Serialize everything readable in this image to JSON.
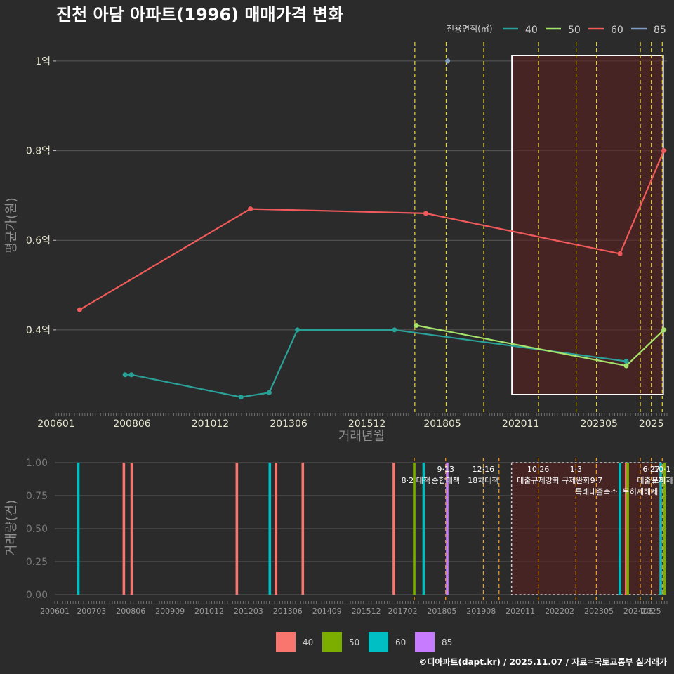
{
  "title": "진천 아담 아파트(1996) 매매가격 변화",
  "caption": "©디아파트(dapt.kr) / 2025.11.07 / 자료=국토교통부 실거래가",
  "colors": {
    "s40": "#f8766d",
    "s50": "#7cae00",
    "s60": "#00bfc4",
    "s85": "#c77cff",
    "bg": "#2b2b2b"
  },
  "legend_top": {
    "title": "전용면적(㎡)",
    "items": [
      {
        "label": "40",
        "color": "#2aa198"
      },
      {
        "label": "50",
        "color": "#a6e36a"
      },
      {
        "label": "60",
        "color": "#f15a5a"
      },
      {
        "label": "85",
        "color": "#7f9cc0"
      }
    ]
  },
  "legend_bottom": {
    "items": [
      {
        "label": "40",
        "color": "#f8766d"
      },
      {
        "label": "50",
        "color": "#7cae00"
      },
      {
        "label": "60",
        "color": "#00bfc4"
      },
      {
        "label": "85",
        "color": "#c77cff"
      }
    ]
  },
  "chart_data": [
    {
      "type": "line",
      "xlabel": "거래년월",
      "ylabel": "평균가(원)",
      "x_range": [
        2006.0,
        2025.5
      ],
      "ylim": [
        0.215,
        1.05
      ],
      "x_ticks": [
        "200601",
        "200806",
        "201012",
        "201306",
        "201512",
        "201805",
        "202011",
        "202305",
        "2025"
      ],
      "y_ticks": [
        "0.4억",
        "0.6억",
        "0.8억",
        "1억"
      ],
      "series": [
        {
          "name": "40",
          "color": "#2aa198",
          "points": [
            [
              2008.2,
              0.3
            ],
            [
              2008.4,
              0.3
            ],
            [
              2011.9,
              0.25
            ],
            [
              2012.8,
              0.26
            ],
            [
              2013.7,
              0.4
            ],
            [
              2016.8,
              0.4
            ],
            [
              2024.2,
              0.33
            ]
          ]
        },
        {
          "name": "50",
          "color": "#a6e36a",
          "points": [
            [
              2017.5,
              0.41
            ],
            [
              2024.2,
              0.32
            ],
            [
              2025.4,
              0.4
            ]
          ]
        },
        {
          "name": "60",
          "color": "#f15a5a",
          "points": [
            [
              2006.75,
              0.445
            ],
            [
              2012.2,
              0.67
            ],
            [
              2017.8,
              0.66
            ],
            [
              2024.0,
              0.57
            ],
            [
              2025.4,
              0.8
            ]
          ]
        },
        {
          "name": "85",
          "color": "#7f9cc0",
          "points": [
            [
              2018.5,
              1.0
            ]
          ]
        }
      ],
      "event_lines": [
        2017.45,
        2018.45,
        2019.65,
        2021.4,
        2022.6,
        2023.25,
        2024.65,
        2025.0,
        2025.35
      ],
      "highlight_range": [
        2020.55,
        2025.38
      ]
    },
    {
      "type": "bar",
      "xlabel": "",
      "ylabel": "거래량(건)",
      "x_range": [
        2006.0,
        2025.5
      ],
      "ylim": [
        0,
        1.0
      ],
      "x_ticks": [
        "200601",
        "200703",
        "200806",
        "200909",
        "201012",
        "201203",
        "201306",
        "201409",
        "201512",
        "201702",
        "201805",
        "201908",
        "202011",
        "202202",
        "202305",
        "202408",
        "2025"
      ],
      "y_ticks": [
        "0.00",
        "0.25",
        "0.50",
        "0.75",
        "1.00"
      ],
      "bars": [
        {
          "x": 2006.75,
          "size": "60",
          "value": 1
        },
        {
          "x": 2008.2,
          "size": "40",
          "value": 1
        },
        {
          "x": 2008.45,
          "size": "40",
          "value": 1
        },
        {
          "x": 2011.8,
          "size": "40",
          "value": 1
        },
        {
          "x": 2012.85,
          "size": "60",
          "value": 1
        },
        {
          "x": 2013.05,
          "size": "40",
          "value": 1
        },
        {
          "x": 2013.9,
          "size": "40",
          "value": 1
        },
        {
          "x": 2016.8,
          "size": "40",
          "value": 1
        },
        {
          "x": 2017.45,
          "size": "50",
          "value": 1
        },
        {
          "x": 2017.75,
          "size": "60",
          "value": 1
        },
        {
          "x": 2018.5,
          "size": "85",
          "value": 1
        },
        {
          "x": 2024.0,
          "size": "60",
          "value": 1
        },
        {
          "x": 2024.2,
          "size": "40",
          "value": 1
        },
        {
          "x": 2024.25,
          "size": "50",
          "value": 1
        },
        {
          "x": 2025.3,
          "size": "60",
          "value": 1
        },
        {
          "x": 2025.42,
          "size": "50",
          "value": 1
        }
      ],
      "event_lines": [
        2017.45,
        2018.45,
        2019.65,
        2020.15,
        2021.4,
        2022.6,
        2023.25,
        2024.65,
        2025.0,
        2025.35
      ],
      "events": [
        {
          "x": 2017.5,
          "row": 1,
          "label": "8·2 대책"
        },
        {
          "x": 2018.45,
          "row": 0,
          "label": "9·13"
        },
        {
          "x": 2018.45,
          "row": 1,
          "label": "종합대책"
        },
        {
          "x": 2019.65,
          "row": 0,
          "label": "12·16"
        },
        {
          "x": 2019.65,
          "row": 1,
          "label": "18차대책"
        },
        {
          "x": 2021.4,
          "row": 0,
          "label": "10·26"
        },
        {
          "x": 2021.4,
          "row": 1,
          "label": "대출규제강화"
        },
        {
          "x": 2022.6,
          "row": 0,
          "label": "1·3"
        },
        {
          "x": 2022.6,
          "row": 1,
          "label": "규제완화"
        },
        {
          "x": 2023.25,
          "row": 1,
          "label": "9·7"
        },
        {
          "x": 2023.25,
          "row": 2,
          "label": "특례대출축소"
        },
        {
          "x": 2024.65,
          "row": 2,
          "label": "토허제해제"
        },
        {
          "x": 2025.0,
          "row": 0,
          "label": "6·27"
        },
        {
          "x": 2025.0,
          "row": 1,
          "label": "대출규제"
        },
        {
          "x": 2025.35,
          "row": 0,
          "label": "10·1"
        },
        {
          "x": 2025.35,
          "row": 1,
          "label": "토허제"
        }
      ],
      "highlight_range": [
        2020.55,
        2025.38
      ]
    }
  ]
}
